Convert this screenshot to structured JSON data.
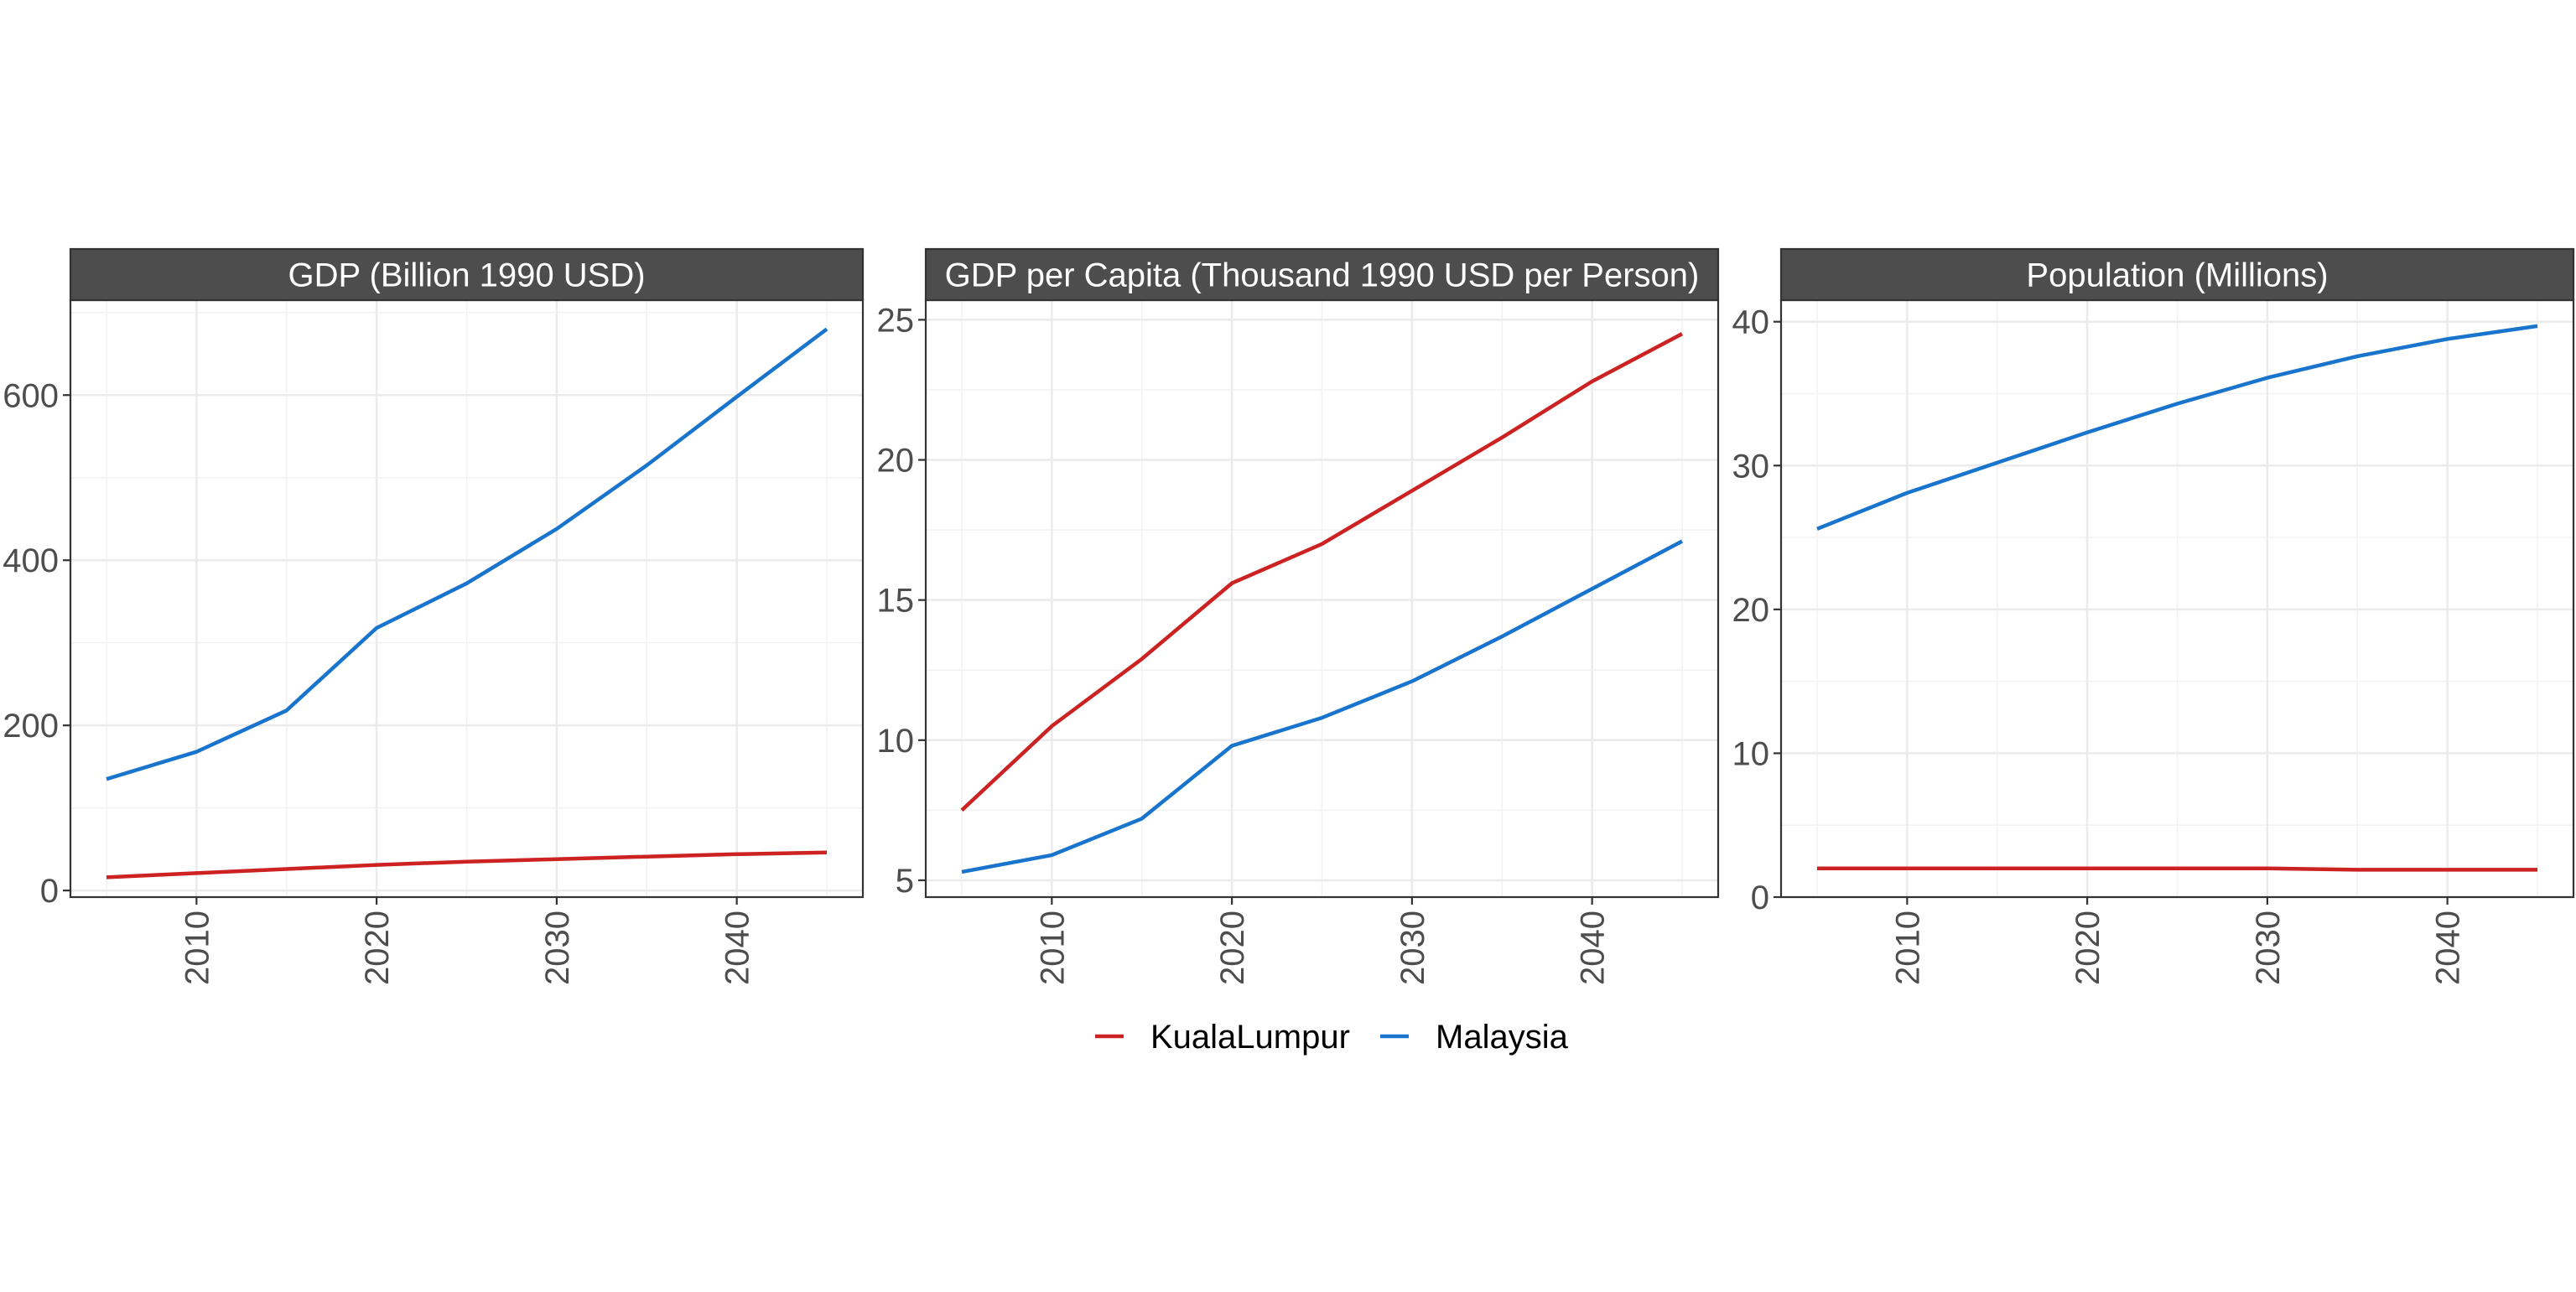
{
  "chart_data": {
    "type": "line",
    "layout": "facets",
    "grid": true,
    "legend_position": "bottom",
    "x": [
      2005,
      2010,
      2015,
      2020,
      2025,
      2030,
      2035,
      2040,
      2045
    ],
    "x_ticks": [
      2010,
      2020,
      2030,
      2040
    ],
    "xlim": [
      2003,
      2047
    ],
    "legend": [
      {
        "name": "KualaLumpur",
        "color": "#cc2222"
      },
      {
        "name": "Malaysia",
        "color": "#1874cd"
      }
    ],
    "panels": [
      {
        "title": "GDP (Billion 1990 USD)",
        "ylim": [
          -8,
          715
        ],
        "y_ticks": [
          0,
          200,
          400,
          600
        ],
        "y_tick_labels": [
          "0",
          "200",
          "400",
          "600"
        ],
        "series": [
          {
            "name": "KualaLumpur",
            "values": [
              16,
              21,
              26,
              31,
              35,
              38,
              41,
              44,
              46
            ]
          },
          {
            "name": "Malaysia",
            "values": [
              135,
              168,
              218,
              318,
              372,
              438,
              515,
              598,
              680
            ]
          }
        ]
      },
      {
        "title": "GDP per Capita (Thousand 1990 USD per Person)",
        "ylim": [
          4.4,
          25.7
        ],
        "y_ticks": [
          5,
          10,
          15,
          20,
          25
        ],
        "y_tick_labels": [
          "5",
          "10",
          "15",
          "20",
          "25"
        ],
        "series": [
          {
            "name": "KualaLumpur",
            "values": [
              7.5,
              10.5,
              12.9,
              15.6,
              17.0,
              18.9,
              20.8,
              22.8,
              24.5
            ]
          },
          {
            "name": "Malaysia",
            "values": [
              5.3,
              5.9,
              7.2,
              9.8,
              10.8,
              12.1,
              13.7,
              15.4,
              17.1
            ]
          }
        ]
      },
      {
        "title": "Population (Millions)",
        "ylim": [
          0,
          41.5
        ],
        "y_ticks": [
          0,
          10,
          20,
          30,
          40
        ],
        "y_tick_labels": [
          "0",
          "10",
          "20",
          "30",
          "40"
        ],
        "series": [
          {
            "name": "KualaLumpur",
            "values": [
              2.0,
              2.0,
              2.0,
              2.0,
              2.0,
              2.0,
              1.9,
              1.9,
              1.9
            ]
          },
          {
            "name": "Malaysia",
            "values": [
              25.6,
              28.1,
              30.2,
              32.3,
              34.3,
              36.1,
              37.6,
              38.8,
              39.7
            ]
          }
        ]
      }
    ]
  }
}
